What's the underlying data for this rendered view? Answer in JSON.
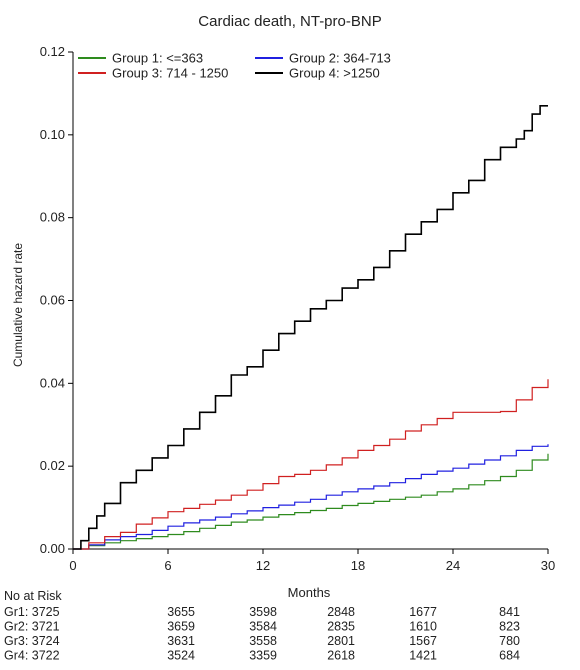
{
  "chart_data": {
    "type": "line",
    "title": "Cardiac death, NT-pro-BNP",
    "xlabel": "Months",
    "ylabel": "Cumulative hazard rate",
    "xlim": [
      0,
      30
    ],
    "ylim": [
      0,
      0.12
    ],
    "xticks": [
      "0",
      "6",
      "12",
      "18",
      "24",
      "30"
    ],
    "yticks": [
      "0.00",
      "0.02",
      "0.04",
      "0.06",
      "0.08",
      "0.10",
      "0.12"
    ],
    "grid": false,
    "legend_position": "top",
    "series": [
      {
        "name": "Group 1: <=363",
        "color": "#2e8b1e",
        "points": [
          [
            0,
            0
          ],
          [
            1,
            0.0008
          ],
          [
            2,
            0.0015
          ],
          [
            3,
            0.002
          ],
          [
            4,
            0.0025
          ],
          [
            5,
            0.003
          ],
          [
            6,
            0.0035
          ],
          [
            7,
            0.0042
          ],
          [
            8,
            0.005
          ],
          [
            9,
            0.0057
          ],
          [
            10,
            0.0065
          ],
          [
            11,
            0.007
          ],
          [
            12,
            0.0077
          ],
          [
            13,
            0.0083
          ],
          [
            14,
            0.0088
          ],
          [
            15,
            0.0093
          ],
          [
            16,
            0.0098
          ],
          [
            17,
            0.0105
          ],
          [
            18,
            0.011
          ],
          [
            19,
            0.0115
          ],
          [
            20,
            0.012
          ],
          [
            21,
            0.0125
          ],
          [
            22,
            0.013
          ],
          [
            23,
            0.0138
          ],
          [
            24,
            0.0145
          ],
          [
            25,
            0.0155
          ],
          [
            26,
            0.0165
          ],
          [
            27,
            0.0175
          ],
          [
            28,
            0.019
          ],
          [
            29,
            0.0215
          ],
          [
            30,
            0.023
          ]
        ]
      },
      {
        "name": "Group 2: 364-713",
        "color": "#2020e0",
        "points": [
          [
            0,
            0
          ],
          [
            1,
            0.001
          ],
          [
            2,
            0.0022
          ],
          [
            3,
            0.003
          ],
          [
            4,
            0.0035
          ],
          [
            5,
            0.0045
          ],
          [
            6,
            0.0055
          ],
          [
            7,
            0.0063
          ],
          [
            8,
            0.007
          ],
          [
            9,
            0.0077
          ],
          [
            10,
            0.0085
          ],
          [
            11,
            0.0092
          ],
          [
            12,
            0.01
          ],
          [
            13,
            0.0106
          ],
          [
            14,
            0.0113
          ],
          [
            15,
            0.012
          ],
          [
            16,
            0.013
          ],
          [
            17,
            0.0138
          ],
          [
            18,
            0.0145
          ],
          [
            19,
            0.0152
          ],
          [
            20,
            0.016
          ],
          [
            21,
            0.017
          ],
          [
            22,
            0.018
          ],
          [
            23,
            0.0188
          ],
          [
            24,
            0.0195
          ],
          [
            25,
            0.0205
          ],
          [
            26,
            0.0215
          ],
          [
            27,
            0.0225
          ],
          [
            28,
            0.0238
          ],
          [
            29,
            0.0248
          ],
          [
            30,
            0.0253
          ]
        ]
      },
      {
        "name": "Group 3: 714 - 1250",
        "color": "#d02020",
        "points": [
          [
            0,
            0
          ],
          [
            1,
            0.0015
          ],
          [
            2,
            0.003
          ],
          [
            3,
            0.004
          ],
          [
            4,
            0.006
          ],
          [
            5,
            0.0075
          ],
          [
            6,
            0.009
          ],
          [
            7,
            0.0098
          ],
          [
            8,
            0.0108
          ],
          [
            9,
            0.0118
          ],
          [
            10,
            0.013
          ],
          [
            11,
            0.0142
          ],
          [
            12,
            0.0158
          ],
          [
            13,
            0.0175
          ],
          [
            14,
            0.018
          ],
          [
            15,
            0.019
          ],
          [
            16,
            0.0203
          ],
          [
            17,
            0.022
          ],
          [
            18,
            0.0238
          ],
          [
            19,
            0.025
          ],
          [
            20,
            0.0265
          ],
          [
            21,
            0.0285
          ],
          [
            22,
            0.03
          ],
          [
            23,
            0.0315
          ],
          [
            24,
            0.033
          ],
          [
            25,
            0.033
          ],
          [
            26,
            0.033
          ],
          [
            27,
            0.0332
          ],
          [
            28,
            0.036
          ],
          [
            29,
            0.039
          ],
          [
            30,
            0.041
          ]
        ]
      },
      {
        "name": "Group 4: >1250",
        "color": "#000000",
        "points": [
          [
            0,
            0
          ],
          [
            0.5,
            0.002
          ],
          [
            1,
            0.005
          ],
          [
            1.5,
            0.008
          ],
          [
            2,
            0.011
          ],
          [
            3,
            0.016
          ],
          [
            4,
            0.019
          ],
          [
            5,
            0.022
          ],
          [
            6,
            0.025
          ],
          [
            7,
            0.029
          ],
          [
            8,
            0.033
          ],
          [
            9,
            0.037
          ],
          [
            10,
            0.042
          ],
          [
            11,
            0.044
          ],
          [
            12,
            0.048
          ],
          [
            13,
            0.052
          ],
          [
            14,
            0.055
          ],
          [
            15,
            0.058
          ],
          [
            16,
            0.06
          ],
          [
            17,
            0.063
          ],
          [
            18,
            0.065
          ],
          [
            19,
            0.068
          ],
          [
            20,
            0.072
          ],
          [
            21,
            0.076
          ],
          [
            22,
            0.079
          ],
          [
            23,
            0.082
          ],
          [
            24,
            0.086
          ],
          [
            25,
            0.089
          ],
          [
            26,
            0.094
          ],
          [
            27,
            0.097
          ],
          [
            28,
            0.099
          ],
          [
            28.5,
            0.101
          ],
          [
            29,
            0.105
          ],
          [
            29.5,
            0.107
          ],
          [
            30,
            0.107
          ]
        ]
      }
    ],
    "risk_table": {
      "header": "No at Risk",
      "rows": [
        {
          "label": "Gr1: 3725",
          "values": [
            "3655",
            "3598",
            "2848",
            "1677",
            "841"
          ]
        },
        {
          "label": "Gr2: 3721",
          "values": [
            "3659",
            "3584",
            "2835",
            "1610",
            "823"
          ]
        },
        {
          "label": "Gr3: 3724",
          "values": [
            "3631",
            "3558",
            "2801",
            "1567",
            "780"
          ]
        },
        {
          "label": "Gr4: 3722",
          "values": [
            "3524",
            "3359",
            "2618",
            "1421",
            "684"
          ]
        }
      ]
    }
  }
}
